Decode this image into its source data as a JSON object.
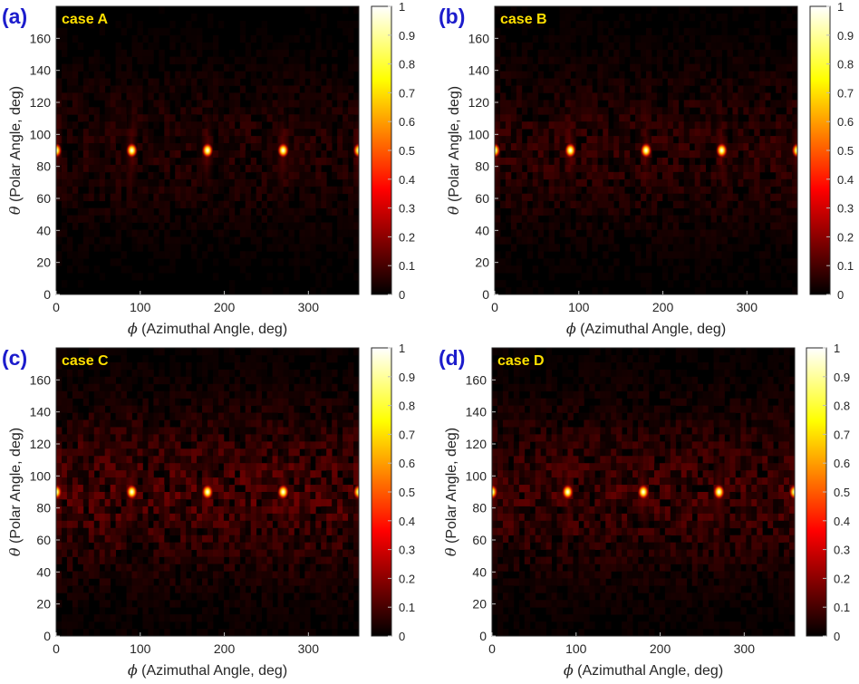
{
  "chart_data": [
    {
      "type": "heatmap",
      "panel_label": "(a)",
      "case_label": "case A",
      "xlabel_symbol": "ϕ",
      "xlabel": "(Azimuthal Angle, deg)",
      "ylabel_symbol": "θ",
      "ylabel": "(Polar Angle, deg)",
      "xlim": [
        0,
        360
      ],
      "ylim": [
        0,
        180
      ],
      "xticks": [
        0,
        100,
        200,
        300
      ],
      "yticks": [
        0,
        20,
        40,
        60,
        80,
        100,
        120,
        140,
        160
      ],
      "colorbar": {
        "colormap": "hot",
        "min": 0,
        "max": 1,
        "ticks": [
          "0",
          "0.1",
          "0.2",
          "0.3",
          "0.4",
          "0.5",
          "0.6",
          "0.7",
          "0.8",
          "0.9",
          "1"
        ]
      },
      "background_level": 0.04,
      "peaks": [
        {
          "phi": 0,
          "theta": 90,
          "value": 1.0
        },
        {
          "phi": 90,
          "theta": 90,
          "value": 1.0
        },
        {
          "phi": 180,
          "theta": 90,
          "value": 1.0
        },
        {
          "phi": 270,
          "theta": 90,
          "value": 1.0
        },
        {
          "phi": 360,
          "theta": 90,
          "value": 1.0
        }
      ]
    },
    {
      "type": "heatmap",
      "panel_label": "(b)",
      "case_label": "case B",
      "xlabel_symbol": "ϕ",
      "xlabel": "(Azimuthal Angle, deg)",
      "ylabel_symbol": "θ",
      "ylabel": "(Polar Angle, deg)",
      "xlim": [
        0,
        360
      ],
      "ylim": [
        0,
        180
      ],
      "xticks": [
        0,
        100,
        200,
        300
      ],
      "yticks": [
        0,
        20,
        40,
        60,
        80,
        100,
        120,
        140,
        160
      ],
      "colorbar": {
        "colormap": "hot",
        "min": 0,
        "max": 1,
        "ticks": [
          "0",
          "0.1",
          "0.2",
          "0.3",
          "0.4",
          "0.5",
          "0.6",
          "0.7",
          "0.8",
          "0.9",
          "1"
        ]
      },
      "background_level": 0.05,
      "peaks": [
        {
          "phi": 0,
          "theta": 90,
          "value": 1.0
        },
        {
          "phi": 90,
          "theta": 90,
          "value": 1.0
        },
        {
          "phi": 180,
          "theta": 90,
          "value": 1.0
        },
        {
          "phi": 270,
          "theta": 90,
          "value": 1.0
        },
        {
          "phi": 360,
          "theta": 90,
          "value": 1.0
        }
      ]
    },
    {
      "type": "heatmap",
      "panel_label": "(c)",
      "case_label": "case C",
      "xlabel_symbol": "ϕ",
      "xlabel": "(Azimuthal Angle, deg)",
      "ylabel_symbol": "θ",
      "ylabel": "(Polar Angle, deg)",
      "xlim": [
        0,
        360
      ],
      "ylim": [
        0,
        180
      ],
      "xticks": [
        0,
        100,
        200,
        300
      ],
      "yticks": [
        0,
        20,
        40,
        60,
        80,
        100,
        120,
        140,
        160
      ],
      "colorbar": {
        "colormap": "hot",
        "min": 0,
        "max": 1,
        "ticks": [
          "0",
          "0.1",
          "0.2",
          "0.3",
          "0.4",
          "0.5",
          "0.6",
          "0.7",
          "0.8",
          "0.9",
          "1"
        ]
      },
      "background_level": 0.08,
      "peaks": [
        {
          "phi": 0,
          "theta": 90,
          "value": 1.0
        },
        {
          "phi": 90,
          "theta": 90,
          "value": 1.0
        },
        {
          "phi": 180,
          "theta": 90,
          "value": 1.0
        },
        {
          "phi": 270,
          "theta": 90,
          "value": 1.0
        },
        {
          "phi": 360,
          "theta": 90,
          "value": 1.0
        }
      ]
    },
    {
      "type": "heatmap",
      "panel_label": "(d)",
      "case_label": "case D",
      "xlabel_symbol": "ϕ",
      "xlabel": "(Azimuthal Angle, deg)",
      "ylabel_symbol": "θ",
      "ylabel": "(Polar Angle, deg)",
      "xlim": [
        0,
        360
      ],
      "ylim": [
        0,
        180
      ],
      "xticks": [
        0,
        100,
        200,
        300
      ],
      "yticks": [
        0,
        20,
        40,
        60,
        80,
        100,
        120,
        140,
        160
      ],
      "colorbar": {
        "colormap": "hot",
        "min": 0,
        "max": 1,
        "ticks": [
          "0",
          "0.1",
          "0.2",
          "0.3",
          "0.4",
          "0.5",
          "0.6",
          "0.7",
          "0.8",
          "0.9",
          "1"
        ]
      },
      "background_level": 0.07,
      "peaks": [
        {
          "phi": 0,
          "theta": 90,
          "value": 1.0
        },
        {
          "phi": 90,
          "theta": 90,
          "value": 1.0
        },
        {
          "phi": 180,
          "theta": 90,
          "value": 1.0
        },
        {
          "phi": 270,
          "theta": 90,
          "value": 1.0
        },
        {
          "phi": 360,
          "theta": 90,
          "value": 1.0
        }
      ]
    }
  ],
  "colors": {
    "panel_label": "#1c1ccc",
    "case_label": "#ffe000",
    "axis_text": "#262626",
    "background": "#ffffff"
  }
}
